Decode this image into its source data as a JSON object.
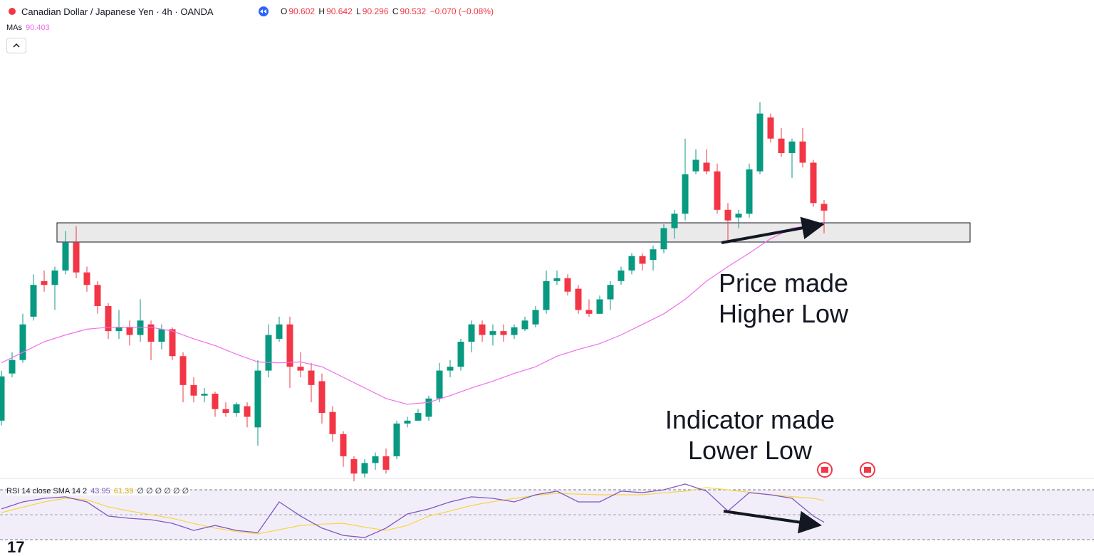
{
  "chart_data": {
    "type": "candlestick",
    "title": "Canadian Dollar / Japanese Yen · 4h · OANDA",
    "header": {
      "o_label": "O",
      "o": "90.602",
      "h_label": "H",
      "h": "90.642",
      "l_label": "L",
      "l": "90.296",
      "c_label": "C",
      "c": "90.532",
      "change": {
        "value": -0.07,
        "label": "−0.070 (−0.08%)"
      }
    },
    "up_color": "#089981",
    "down_color": "#f23645",
    "ylim": [
      87.75,
      92.72
    ],
    "candles": {
      "open": [
        88.35,
        88.84,
        88.98,
        89.43,
        89.8,
        89.76,
        89.91,
        90.2,
        89.89,
        89.76,
        89.54,
        89.28,
        89.32,
        89.24,
        89.35,
        89.17,
        89.3,
        89.02,
        88.72,
        88.61,
        88.63,
        88.47,
        88.43,
        88.5,
        88.28,
        88.87,
        89.2,
        89.35,
        88.91,
        88.87,
        88.76,
        88.44,
        88.21,
        87.95,
        87.8,
        87.91,
        87.98,
        87.98,
        88.32,
        88.35,
        88.39,
        88.58,
        88.87,
        88.91,
        89.17,
        89.35,
        89.24,
        89.28,
        89.24,
        89.3,
        89.35,
        89.5,
        89.8,
        89.83,
        89.72,
        89.5,
        89.46,
        89.61,
        89.8,
        89.91,
        90.06,
        90.02,
        90.13,
        90.35,
        90.5,
        90.94,
        91.03,
        90.94,
        90.54,
        90.46,
        90.5,
        90.94,
        91.5,
        91.28,
        91.13,
        91.25,
        91.03,
        90.602
      ],
      "high": [
        88.87,
        89.06,
        89.46,
        89.87,
        89.91,
        89.95,
        90.32,
        90.37,
        89.95,
        89.8,
        89.57,
        89.5,
        89.39,
        89.61,
        89.39,
        89.35,
        89.32,
        89.06,
        88.8,
        88.69,
        88.65,
        88.54,
        88.54,
        88.54,
        88.98,
        89.35,
        89.43,
        89.43,
        89.06,
        88.95,
        88.84,
        88.5,
        88.24,
        87.98,
        87.95,
        88.02,
        88.06,
        88.35,
        88.39,
        88.47,
        88.61,
        88.95,
        88.98,
        89.2,
        89.39,
        89.39,
        89.35,
        89.35,
        89.35,
        89.43,
        89.54,
        89.91,
        89.91,
        89.87,
        89.76,
        89.61,
        89.65,
        89.8,
        89.95,
        90.09,
        90.09,
        90.17,
        90.39,
        90.54,
        91.28,
        91.17,
        91.17,
        91.02,
        90.61,
        90.54,
        91.02,
        91.66,
        91.54,
        91.39,
        91.28,
        91.39,
        91.06,
        90.642
      ],
      "low": [
        88.3,
        88.8,
        88.95,
        89.39,
        89.69,
        89.5,
        89.87,
        89.83,
        89.69,
        89.46,
        89.2,
        89.2,
        89.13,
        89.17,
        88.98,
        89.09,
        88.98,
        88.54,
        88.54,
        88.54,
        88.39,
        88.39,
        88.39,
        88.28,
        88.09,
        88.8,
        89.17,
        88.69,
        88.8,
        88.54,
        88.32,
        88.13,
        87.87,
        87.72,
        87.76,
        87.84,
        87.8,
        87.95,
        88.28,
        88.35,
        88.35,
        88.54,
        88.8,
        88.87,
        89.06,
        89.17,
        89.13,
        89.17,
        89.2,
        89.28,
        89.32,
        89.46,
        89.76,
        89.65,
        89.46,
        89.43,
        89.46,
        89.5,
        89.76,
        89.87,
        89.91,
        89.91,
        90.09,
        90.24,
        90.43,
        90.91,
        90.91,
        90.5,
        90.2,
        90.35,
        90.46,
        90.91,
        91.24,
        91.09,
        90.87,
        90.98,
        90.57,
        90.296
      ],
      "close": [
        88.81,
        88.98,
        89.35,
        89.76,
        89.76,
        89.91,
        90.2,
        89.89,
        89.76,
        89.54,
        89.28,
        89.32,
        89.24,
        89.39,
        89.17,
        89.3,
        89.02,
        88.72,
        88.61,
        88.63,
        88.47,
        88.43,
        88.52,
        88.39,
        88.87,
        89.24,
        89.35,
        88.91,
        88.87,
        88.72,
        88.43,
        88.21,
        87.98,
        87.8,
        87.91,
        87.98,
        87.84,
        88.32,
        88.35,
        88.43,
        88.58,
        88.87,
        88.91,
        89.17,
        89.35,
        89.24,
        89.28,
        89.24,
        89.32,
        89.39,
        89.5,
        89.8,
        89.83,
        89.69,
        89.5,
        89.46,
        89.61,
        89.76,
        89.91,
        90.06,
        89.98,
        90.13,
        90.35,
        90.5,
        90.91,
        91.06,
        90.94,
        90.54,
        90.43,
        90.5,
        90.96,
        91.54,
        91.28,
        91.13,
        91.25,
        91.03,
        90.61,
        90.532
      ]
    },
    "ma": {
      "name": "MAs",
      "last": "90.403",
      "color": "#f06cf0",
      "x": [
        0,
        2,
        4,
        6,
        8,
        10,
        12,
        14,
        16,
        18,
        20,
        22,
        24,
        26,
        28,
        30,
        32,
        34,
        36,
        38,
        40,
        42,
        44,
        46,
        48,
        50,
        52,
        54,
        56,
        58,
        60,
        62,
        64,
        66,
        68,
        70,
        72,
        74,
        76,
        77
      ],
      "values": [
        88.95,
        89.06,
        89.17,
        89.24,
        89.3,
        89.32,
        89.32,
        89.32,
        89.28,
        89.2,
        89.13,
        89.04,
        88.96,
        88.95,
        88.96,
        88.91,
        88.8,
        88.69,
        88.58,
        88.52,
        88.54,
        88.61,
        88.69,
        88.76,
        88.84,
        88.91,
        89.02,
        89.09,
        89.15,
        89.24,
        89.35,
        89.46,
        89.61,
        89.8,
        89.95,
        90.09,
        90.24,
        90.35,
        90.38,
        90.403
      ]
    },
    "rsi": {
      "title": "RSI 14 close SMA 14 2",
      "last": "43.95",
      "sma_last": "61.39",
      "extra": "∅ ∅ ∅ ∅ ∅ ∅",
      "ylim": [
        28.9,
        79.1
      ],
      "color": "#7e57c2",
      "sma_color": "#f7d548",
      "x": [
        0,
        2,
        4,
        6,
        8,
        10,
        12,
        14,
        16,
        18,
        20,
        22,
        24,
        26,
        28,
        30,
        32,
        34,
        36,
        38,
        40,
        42,
        44,
        46,
        48,
        50,
        52,
        54,
        56,
        58,
        60,
        62,
        64,
        66,
        68,
        70,
        72,
        74,
        76,
        77
      ],
      "values": [
        54.6,
        60.3,
        63.1,
        64.3,
        60.3,
        48.9,
        47.1,
        46.0,
        43.1,
        37.4,
        41.4,
        37.4,
        35.7,
        60.3,
        48.9,
        39.3,
        33.4,
        31.7,
        39.3,
        50.6,
        54.6,
        60.3,
        64.3,
        63.1,
        60.3,
        66.0,
        68.9,
        60.3,
        60.3,
        68.9,
        67.7,
        70.0,
        74.6,
        68.9,
        52.9,
        67.7,
        66.0,
        63.1,
        48.9,
        43.95
      ],
      "sma": [
        51.7,
        56.0,
        60.3,
        63.1,
        62.0,
        56.3,
        52.9,
        50.0,
        47.1,
        43.0,
        39.3,
        36.5,
        34.6,
        38.0,
        41.4,
        42.5,
        43.1,
        40.0,
        37.4,
        41.4,
        48.9,
        53.0,
        57.4,
        60.5,
        63.1,
        65.5,
        67.1,
        66.5,
        66.0,
        66.0,
        66.0,
        67.5,
        68.9,
        71.7,
        70.0,
        68.0,
        66.0,
        64.5,
        63.1,
        61.39
      ]
    },
    "annotations": [
      "Price made",
      "Higher Low",
      "Indicator made",
      "Lower Low"
    ]
  }
}
